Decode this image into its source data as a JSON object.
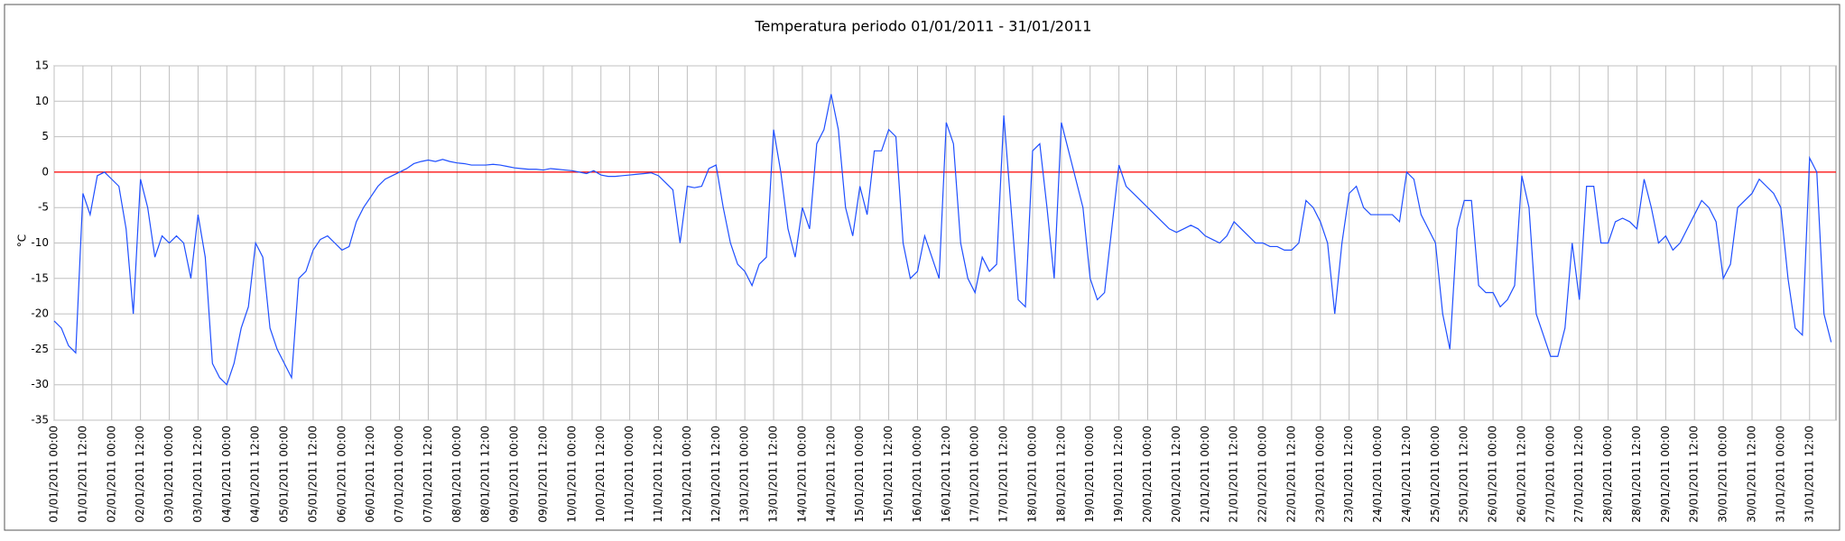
{
  "chart_data": {
    "type": "line",
    "title": "Temperatura periodo 01/01/2011 - 31/01/2011",
    "y_label": "°C",
    "color": "#1f4fff",
    "grid": true,
    "ref_line": {
      "value": 0,
      "color": "#ff0000"
    },
    "ylim": [
      -35,
      15
    ],
    "yticks": [
      -35,
      -30,
      -25,
      -20,
      -15,
      -10,
      -5,
      0,
      5,
      10,
      15
    ],
    "xlim": [
      "01/01/2011 00:00",
      "31/01/2011 23:00"
    ],
    "xticks": [
      "01/01/2011 00:00",
      "01/01/2011 12:00",
      "02/01/2011 00:00",
      "02/01/2011 12:00",
      "03/01/2011 00:00",
      "03/01/2011 12:00",
      "04/01/2011 00:00",
      "04/01/2011 12:00",
      "05/01/2011 00:00",
      "05/01/2011 12:00",
      "06/01/2011 00:00",
      "06/01/2011 12:00",
      "07/01/2011 00:00",
      "07/01/2011 12:00",
      "08/01/2011 00:00",
      "08/01/2011 12:00",
      "09/01/2011 00:00",
      "09/01/2011 12:00",
      "10/01/2011 00:00",
      "10/01/2011 12:00",
      "11/01/2011 00:00",
      "11/01/2011 12:00",
      "12/01/2011 00:00",
      "12/01/2011 12:00",
      "13/01/2011 00:00",
      "13/01/2011 12:00",
      "14/01/2011 00:00",
      "14/01/2011 12:00",
      "15/01/2011 00:00",
      "15/01/2011 12:00",
      "16/01/2011 00:00",
      "16/01/2011 12:00",
      "17/01/2011 00:00",
      "17/01/2011 12:00",
      "18/01/2011 00:00",
      "18/01/2011 12:00",
      "19/01/2011 00:00",
      "19/01/2011 12:00",
      "20/01/2011 00:00",
      "20/01/2011 12:00",
      "21/01/2011 00:00",
      "21/01/2011 12:00",
      "22/01/2011 00:00",
      "22/01/2011 12:00",
      "23/01/2011 00:00",
      "23/01/2011 12:00",
      "24/01/2011 00:00",
      "24/01/2011 12:00",
      "25/01/2011 00:00",
      "25/01/2011 12:00",
      "26/01/2011 00:00",
      "26/01/2011 12:00",
      "27/01/2011 00:00",
      "27/01/2011 12:00",
      "28/01/2011 00:00",
      "28/01/2011 12:00",
      "29/01/2011 00:00",
      "29/01/2011 12:00",
      "30/01/2011 00:00",
      "30/01/2011 12:00",
      "31/01/2011 00:00",
      "31/01/2011 12:00"
    ],
    "x": [
      "01/01/2011 00:00",
      "01/01/2011 03:00",
      "01/01/2011 06:00",
      "01/01/2011 09:00",
      "01/01/2011 12:00",
      "01/01/2011 15:00",
      "01/01/2011 18:00",
      "01/01/2011 21:00",
      "02/01/2011 00:00",
      "02/01/2011 03:00",
      "02/01/2011 06:00",
      "02/01/2011 09:00",
      "02/01/2011 12:00",
      "02/01/2011 15:00",
      "02/01/2011 18:00",
      "02/01/2011 21:00",
      "03/01/2011 00:00",
      "03/01/2011 03:00",
      "03/01/2011 06:00",
      "03/01/2011 09:00",
      "03/01/2011 12:00",
      "03/01/2011 15:00",
      "03/01/2011 18:00",
      "03/01/2011 21:00",
      "04/01/2011 00:00",
      "04/01/2011 03:00",
      "04/01/2011 06:00",
      "04/01/2011 09:00",
      "04/01/2011 12:00",
      "04/01/2011 15:00",
      "04/01/2011 18:00",
      "04/01/2011 21:00",
      "05/01/2011 00:00",
      "05/01/2011 03:00",
      "05/01/2011 06:00",
      "05/01/2011 09:00",
      "05/01/2011 12:00",
      "05/01/2011 15:00",
      "05/01/2011 18:00",
      "05/01/2011 21:00",
      "06/01/2011 00:00",
      "06/01/2011 03:00",
      "06/01/2011 06:00",
      "06/01/2011 09:00",
      "06/01/2011 12:00",
      "06/01/2011 15:00",
      "06/01/2011 18:00",
      "06/01/2011 21:00",
      "07/01/2011 00:00",
      "07/01/2011 03:00",
      "07/01/2011 06:00",
      "07/01/2011 09:00",
      "07/01/2011 12:00",
      "07/01/2011 15:00",
      "07/01/2011 18:00",
      "07/01/2011 21:00",
      "08/01/2011 00:00",
      "08/01/2011 03:00",
      "08/01/2011 06:00",
      "08/01/2011 09:00",
      "08/01/2011 12:00",
      "08/01/2011 15:00",
      "08/01/2011 18:00",
      "08/01/2011 21:00",
      "09/01/2011 00:00",
      "09/01/2011 03:00",
      "09/01/2011 06:00",
      "09/01/2011 09:00",
      "09/01/2011 12:00",
      "09/01/2011 15:00",
      "09/01/2011 18:00",
      "09/01/2011 21:00",
      "10/01/2011 00:00",
      "10/01/2011 03:00",
      "10/01/2011 06:00",
      "10/01/2011 09:00",
      "10/01/2011 12:00",
      "10/01/2011 15:00",
      "10/01/2011 18:00",
      "10/01/2011 21:00",
      "11/01/2011 00:00",
      "11/01/2011 03:00",
      "11/01/2011 06:00",
      "11/01/2011 09:00",
      "11/01/2011 12:00",
      "11/01/2011 15:00",
      "11/01/2011 18:00",
      "11/01/2011 21:00",
      "12/01/2011 00:00",
      "12/01/2011 03:00",
      "12/01/2011 06:00",
      "12/01/2011 09:00",
      "12/01/2011 12:00",
      "12/01/2011 15:00",
      "12/01/2011 18:00",
      "12/01/2011 21:00",
      "13/01/2011 00:00",
      "13/01/2011 03:00",
      "13/01/2011 06:00",
      "13/01/2011 09:00",
      "13/01/2011 12:00",
      "13/01/2011 15:00",
      "13/01/2011 18:00",
      "13/01/2011 21:00",
      "14/01/2011 00:00",
      "14/01/2011 03:00",
      "14/01/2011 06:00",
      "14/01/2011 09:00",
      "14/01/2011 12:00",
      "14/01/2011 15:00",
      "14/01/2011 18:00",
      "14/01/2011 21:00",
      "15/01/2011 00:00",
      "15/01/2011 03:00",
      "15/01/2011 06:00",
      "15/01/2011 09:00",
      "15/01/2011 12:00",
      "15/01/2011 15:00",
      "15/01/2011 18:00",
      "15/01/2011 21:00",
      "16/01/2011 00:00",
      "16/01/2011 03:00",
      "16/01/2011 06:00",
      "16/01/2011 09:00",
      "16/01/2011 12:00",
      "16/01/2011 15:00",
      "16/01/2011 18:00",
      "16/01/2011 21:00",
      "17/01/2011 00:00",
      "17/01/2011 03:00",
      "17/01/2011 06:00",
      "17/01/2011 09:00",
      "17/01/2011 12:00",
      "17/01/2011 15:00",
      "17/01/2011 18:00",
      "17/01/2011 21:00",
      "18/01/2011 00:00",
      "18/01/2011 03:00",
      "18/01/2011 06:00",
      "18/01/2011 09:00",
      "18/01/2011 12:00",
      "18/01/2011 15:00",
      "18/01/2011 18:00",
      "18/01/2011 21:00",
      "19/01/2011 00:00",
      "19/01/2011 03:00",
      "19/01/2011 06:00",
      "19/01/2011 09:00",
      "19/01/2011 12:00",
      "19/01/2011 15:00",
      "19/01/2011 18:00",
      "19/01/2011 21:00",
      "20/01/2011 00:00",
      "20/01/2011 03:00",
      "20/01/2011 06:00",
      "20/01/2011 09:00",
      "20/01/2011 12:00",
      "20/01/2011 15:00",
      "20/01/2011 18:00",
      "20/01/2011 21:00",
      "21/01/2011 00:00",
      "21/01/2011 03:00",
      "21/01/2011 06:00",
      "21/01/2011 09:00",
      "21/01/2011 12:00",
      "21/01/2011 15:00",
      "21/01/2011 18:00",
      "21/01/2011 21:00",
      "22/01/2011 00:00",
      "22/01/2011 03:00",
      "22/01/2011 06:00",
      "22/01/2011 09:00",
      "22/01/2011 12:00",
      "22/01/2011 15:00",
      "22/01/2011 18:00",
      "22/01/2011 21:00",
      "23/01/2011 00:00",
      "23/01/2011 03:00",
      "23/01/2011 06:00",
      "23/01/2011 09:00",
      "23/01/2011 12:00",
      "23/01/2011 15:00",
      "23/01/2011 18:00",
      "23/01/2011 21:00",
      "24/01/2011 00:00",
      "24/01/2011 03:00",
      "24/01/2011 06:00",
      "24/01/2011 09:00",
      "24/01/2011 12:00",
      "24/01/2011 15:00",
      "24/01/2011 18:00",
      "24/01/2011 21:00",
      "25/01/2011 00:00",
      "25/01/2011 03:00",
      "25/01/2011 06:00",
      "25/01/2011 09:00",
      "25/01/2011 12:00",
      "25/01/2011 15:00",
      "25/01/2011 18:00",
      "25/01/2011 21:00",
      "26/01/2011 00:00",
      "26/01/2011 03:00",
      "26/01/2011 06:00",
      "26/01/2011 09:00",
      "26/01/2011 12:00",
      "26/01/2011 15:00",
      "26/01/2011 18:00",
      "26/01/2011 21:00",
      "27/01/2011 00:00",
      "27/01/2011 03:00",
      "27/01/2011 06:00",
      "27/01/2011 09:00",
      "27/01/2011 12:00",
      "27/01/2011 15:00",
      "27/01/2011 18:00",
      "27/01/2011 21:00",
      "28/01/2011 00:00",
      "28/01/2011 03:00",
      "28/01/2011 06:00",
      "28/01/2011 09:00",
      "28/01/2011 12:00",
      "28/01/2011 15:00",
      "28/01/2011 18:00",
      "28/01/2011 21:00",
      "29/01/2011 00:00",
      "29/01/2011 03:00",
      "29/01/2011 06:00",
      "29/01/2011 09:00",
      "29/01/2011 12:00",
      "29/01/2011 15:00",
      "29/01/2011 18:00",
      "29/01/2011 21:00",
      "30/01/2011 00:00",
      "30/01/2011 03:00",
      "30/01/2011 06:00",
      "30/01/2011 09:00",
      "30/01/2011 12:00",
      "30/01/2011 15:00",
      "30/01/2011 18:00",
      "30/01/2011 21:00",
      "31/01/2011 00:00",
      "31/01/2011 03:00",
      "31/01/2011 06:00",
      "31/01/2011 09:00",
      "31/01/2011 12:00",
      "31/01/2011 15:00",
      "31/01/2011 18:00",
      "31/01/2011 21:00"
    ],
    "values": [
      -21,
      -22,
      -24.5,
      -25.5,
      -3,
      -6,
      -0.5,
      0,
      -1,
      -2,
      -8,
      -20,
      -1,
      -5,
      -12,
      -9,
      -10,
      -9,
      -10,
      -15,
      -6,
      -12,
      -27,
      -29,
      -30,
      -27,
      -22,
      -19,
      -10,
      -12,
      -22,
      -25,
      -27,
      -29,
      -15,
      -14,
      -11,
      -9.5,
      -9,
      -10,
      -11,
      -10.5,
      -7,
      -5,
      -3.5,
      -2,
      -1,
      -0.5,
      0,
      0.5,
      1.2,
      1.5,
      1.7,
      1.5,
      1.8,
      1.5,
      1.3,
      1.2,
      1,
      1,
      1,
      1.1,
      1,
      0.8,
      0.6,
      0.5,
      0.4,
      0.4,
      0.3,
      0.5,
      0.4,
      0.3,
      0.2,
      0,
      -0.2,
      0.2,
      -0.4,
      -0.6,
      -0.6,
      -0.5,
      -0.4,
      -0.3,
      -0.2,
      -0.1,
      -0.5,
      -1.5,
      -2.5,
      -10,
      -2,
      -2.2,
      -2,
      0.5,
      1,
      -5,
      -10,
      -13,
      -14,
      -16,
      -13,
      -12,
      6,
      0,
      -8,
      -12,
      -5,
      -8,
      4,
      6,
      11,
      6,
      -5,
      -9,
      -2,
      -6,
      3,
      3,
      6,
      5,
      -10,
      -15,
      -14,
      -9,
      -12,
      -15,
      7,
      4,
      -10,
      -15,
      -17,
      -12,
      -14,
      -13,
      8,
      -5,
      -18,
      -19,
      3,
      4,
      -5,
      -15,
      7,
      3,
      -1,
      -5,
      -15,
      -18,
      -17,
      -8,
      1,
      -2,
      -3,
      -4,
      -5,
      -6,
      -7,
      -8,
      -8.5,
      -8,
      -7.5,
      -8,
      -9,
      -9.5,
      -10,
      -9,
      -7,
      -8,
      -9,
      -10,
      -10,
      -10.5,
      -10.5,
      -11,
      -11,
      -10,
      -4,
      -5,
      -7,
      -10,
      -20,
      -10,
      -3,
      -2,
      -5,
      -6,
      -6,
      -6,
      -6,
      -7,
      0,
      -1,
      -6,
      -8,
      -10,
      -20,
      -25,
      -8,
      -4,
      -4,
      -16,
      -17,
      -17,
      -19,
      -18,
      -16,
      -0.5,
      -5,
      -20,
      -23,
      -26,
      -26,
      -22,
      -10,
      -18,
      -2,
      -2,
      -10,
      -10,
      -7,
      -6.5,
      -7,
      -8,
      -1,
      -5,
      -10,
      -9,
      -11,
      -10,
      -8,
      -6,
      -4,
      -5,
      -7,
      -15,
      -13,
      -5,
      -4,
      -3,
      -1,
      -2,
      -3,
      -5,
      -15,
      -22,
      -23,
      2,
      0,
      -20,
      -24
    ]
  }
}
